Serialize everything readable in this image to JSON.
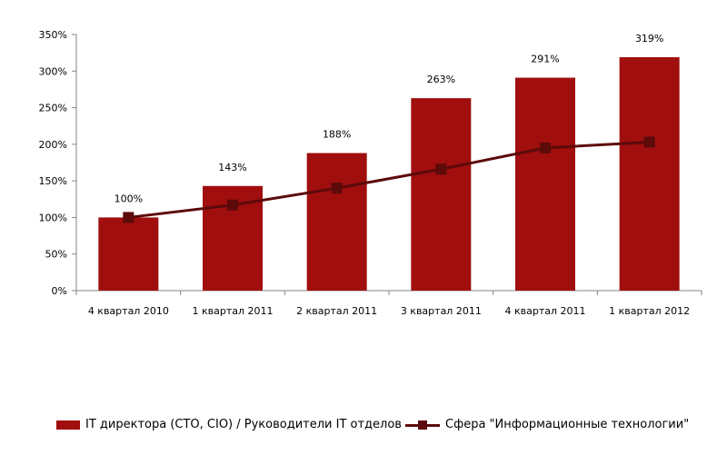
{
  "chart_data": {
    "type": "bar",
    "categories": [
      "4 квартал 2010",
      "1 квартал 2011",
      "2 квартал 2011",
      "3 квартал 2011",
      "4 квартал 2011",
      "1 квартал 2012"
    ],
    "series": [
      {
        "name": "IT директора (CTO, CIO) / Руководители IT отделов",
        "type": "bar",
        "values": [
          100,
          143,
          188,
          263,
          291,
          319
        ],
        "labels": [
          "100%",
          "143%",
          "188%",
          "263%",
          "291%",
          "319%"
        ],
        "color": "#a00e0e"
      },
      {
        "name": "Сфера \"Информационные технологии\"",
        "type": "line",
        "values": [
          100,
          117,
          140,
          166,
          195,
          203
        ],
        "color": "#5c0a0a"
      }
    ],
    "yticks": [
      "0%",
      "50%",
      "100%",
      "150%",
      "200%",
      "250%",
      "300%",
      "350%"
    ],
    "ylim": [
      0,
      350
    ],
    "grid": false,
    "legend_position": "bottom"
  }
}
